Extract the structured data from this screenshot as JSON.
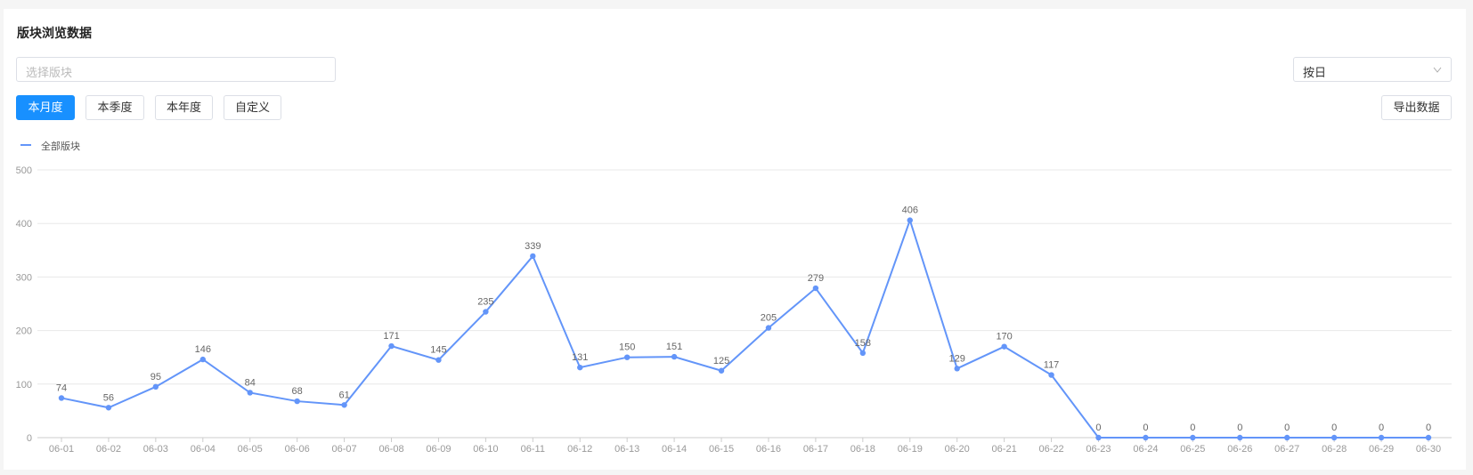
{
  "ui": {
    "title": "版块浏览数据",
    "block_placeholder": "选择版块",
    "period_select": "按日",
    "range_buttons": [
      "本月度",
      "本季度",
      "本年度",
      "自定义"
    ],
    "export_button": "导出数据"
  },
  "chart_data": {
    "type": "line",
    "categories": [
      "06-01",
      "06-02",
      "06-03",
      "06-04",
      "06-05",
      "06-06",
      "06-07",
      "06-08",
      "06-09",
      "06-10",
      "06-11",
      "06-12",
      "06-13",
      "06-14",
      "06-15",
      "06-16",
      "06-17",
      "06-18",
      "06-19",
      "06-20",
      "06-21",
      "06-22",
      "06-23",
      "06-24",
      "06-25",
      "06-26",
      "06-27",
      "06-28",
      "06-29",
      "06-30"
    ],
    "series": [
      {
        "name": "全部版块",
        "color": "#6395f9",
        "values": [
          74,
          56,
          95,
          146,
          84,
          68,
          61,
          171,
          145,
          235,
          339,
          131,
          150,
          151,
          125,
          205,
          279,
          158,
          406,
          129,
          170,
          117,
          0,
          0,
          0,
          0,
          0,
          0,
          0,
          0
        ]
      }
    ],
    "ylim": [
      0,
      500
    ],
    "yticks": [
      0,
      100,
      200,
      300,
      400,
      500
    ],
    "grid": true,
    "data_labels": true
  }
}
